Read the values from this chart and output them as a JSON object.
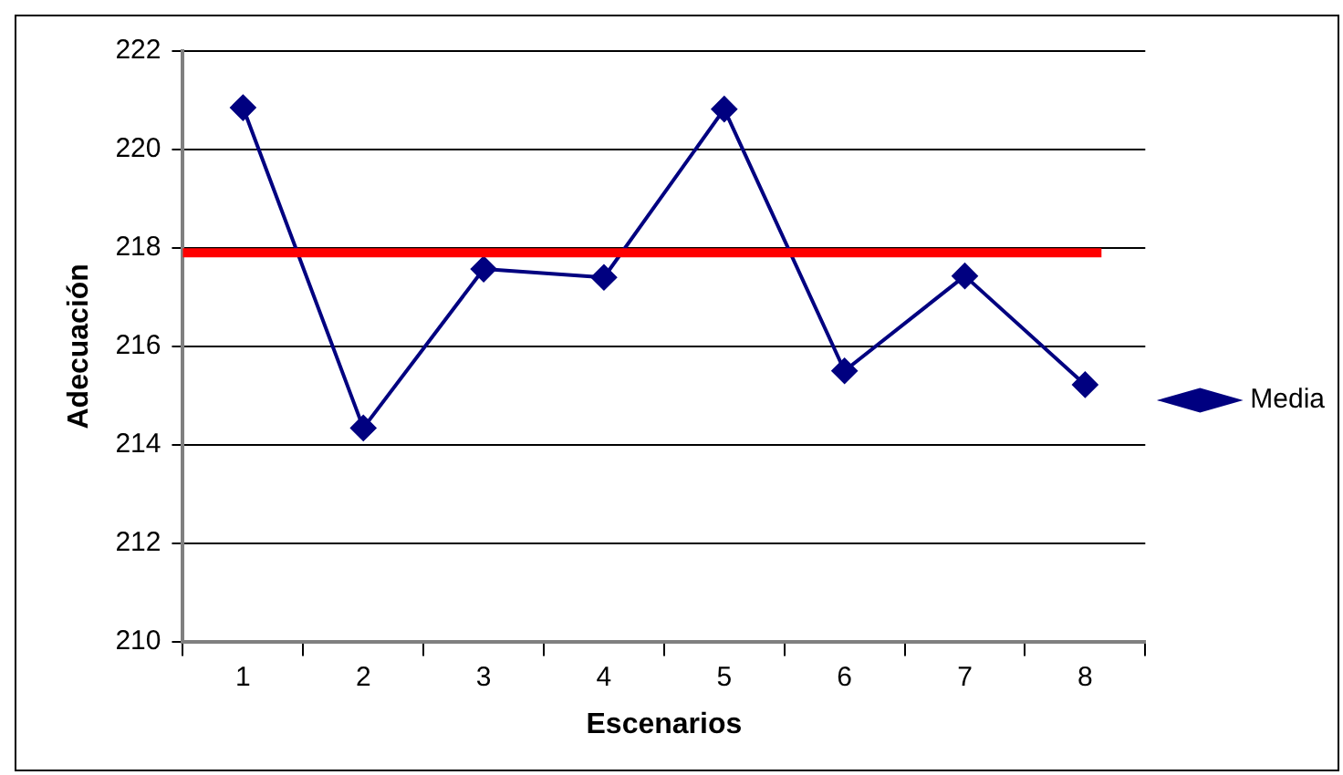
{
  "chart_data": {
    "type": "line",
    "xlabel": "Escenarios",
    "ylabel": "Adecuación",
    "categories": [
      "1",
      "2",
      "3",
      "4",
      "5",
      "6",
      "7",
      "8"
    ],
    "series": [
      {
        "name": "Media",
        "color": "#000080",
        "values": [
          220.85,
          214.34,
          217.57,
          217.4,
          220.82,
          215.5,
          217.43,
          215.22
        ]
      }
    ],
    "ylim": [
      210,
      222
    ],
    "yticks": [
      210,
      212,
      214,
      216,
      218,
      220,
      222
    ],
    "grid": "y",
    "legend": "right",
    "marker": "diamond",
    "line_style": "solid",
    "ref_lines": [
      {
        "axis": "y",
        "value": 217.9,
        "color": "#ff0000"
      }
    ]
  }
}
